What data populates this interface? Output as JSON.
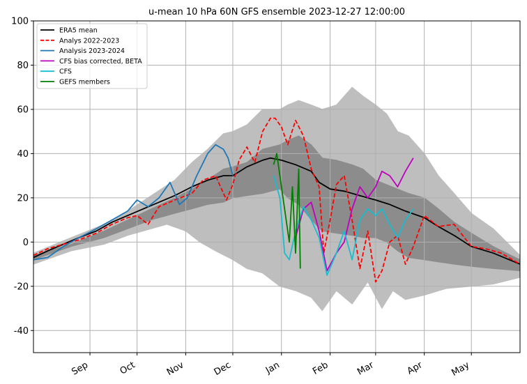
{
  "chart_data": {
    "type": "line",
    "title": "u-mean 10 hPa 60N GFS ensemble 2023-12-27 12:00:00",
    "xlabel": "",
    "ylabel": "",
    "ylim": [
      -50,
      100
    ],
    "xlim": [
      "2023-07-27",
      "2024-06-01"
    ],
    "yticks": [
      -40,
      -20,
      0,
      20,
      40,
      60,
      80,
      100
    ],
    "xticks": [
      {
        "label": "Sep",
        "date": "2023-09-01"
      },
      {
        "label": "Oct",
        "date": "2023-10-01"
      },
      {
        "label": "Nov",
        "date": "2023-11-01"
      },
      {
        "label": "Dec",
        "date": "2023-12-01"
      },
      {
        "label": "Jan",
        "date": "2024-01-01"
      },
      {
        "label": "Feb",
        "date": "2024-02-01"
      },
      {
        "label": "Mar",
        "date": "2024-03-01"
      },
      {
        "label": "Apr",
        "date": "2024-04-01"
      },
      {
        "label": "May",
        "date": "2024-05-01"
      }
    ],
    "grid": true,
    "legend_position": "top-left",
    "bands": [
      {
        "color": "#bebebe",
        "upper": [
          [
            "2023-07-27",
            -5
          ],
          [
            "2023-08-20",
            2
          ],
          [
            "2023-09-10",
            8
          ],
          [
            "2023-09-25",
            14
          ],
          [
            "2023-10-10",
            21
          ],
          [
            "2023-10-25",
            28
          ],
          [
            "2023-11-05",
            36
          ],
          [
            "2023-11-15",
            42
          ],
          [
            "2023-11-25",
            49
          ],
          [
            "2023-12-01",
            50
          ],
          [
            "2023-12-10",
            53
          ],
          [
            "2023-12-20",
            60
          ],
          [
            "2023-12-31",
            60
          ],
          [
            "2024-01-05",
            62
          ],
          [
            "2024-01-12",
            64
          ],
          [
            "2024-01-20",
            62
          ],
          [
            "2024-01-27",
            60
          ],
          [
            "2024-02-05",
            62
          ],
          [
            "2024-02-15",
            70
          ],
          [
            "2024-02-22",
            66
          ],
          [
            "2024-03-01",
            62
          ],
          [
            "2024-03-08",
            58
          ],
          [
            "2024-03-15",
            50
          ],
          [
            "2024-03-22",
            48
          ],
          [
            "2024-04-01",
            40
          ],
          [
            "2024-04-10",
            30
          ],
          [
            "2024-04-20",
            22
          ],
          [
            "2024-05-01",
            13
          ],
          [
            "2024-05-15",
            6
          ],
          [
            "2024-06-01",
            -6
          ]
        ],
        "lower": [
          [
            "2023-07-27",
            -10
          ],
          [
            "2023-08-20",
            -4
          ],
          [
            "2023-09-10",
            -1
          ],
          [
            "2023-09-25",
            3
          ],
          [
            "2023-10-10",
            6
          ],
          [
            "2023-10-20",
            8
          ],
          [
            "2023-11-01",
            5
          ],
          [
            "2023-11-10",
            0
          ],
          [
            "2023-11-20",
            -4
          ],
          [
            "2023-12-01",
            -8
          ],
          [
            "2023-12-10",
            -12
          ],
          [
            "2023-12-20",
            -14
          ],
          [
            "2023-12-31",
            -20
          ],
          [
            "2024-01-10",
            -22
          ],
          [
            "2024-01-20",
            -25
          ],
          [
            "2024-01-27",
            -31
          ],
          [
            "2024-02-05",
            -22
          ],
          [
            "2024-02-15",
            -28
          ],
          [
            "2024-02-25",
            -18
          ],
          [
            "2024-03-05",
            -30
          ],
          [
            "2024-03-12",
            -22
          ],
          [
            "2024-03-20",
            -26
          ],
          [
            "2024-04-01",
            -24
          ],
          [
            "2024-04-15",
            -21
          ],
          [
            "2024-05-01",
            -20
          ],
          [
            "2024-05-15",
            -19
          ],
          [
            "2024-06-01",
            -16
          ]
        ]
      },
      {
        "color": "#8c8c8c",
        "upper": [
          [
            "2023-07-27",
            -6
          ],
          [
            "2023-08-20",
            -1
          ],
          [
            "2023-09-10",
            5
          ],
          [
            "2023-09-25",
            10
          ],
          [
            "2023-10-10",
            15
          ],
          [
            "2023-10-25",
            20
          ],
          [
            "2023-11-05",
            24
          ],
          [
            "2023-11-15",
            28
          ],
          [
            "2023-11-25",
            33
          ],
          [
            "2023-12-01",
            34
          ],
          [
            "2023-12-10",
            36
          ],
          [
            "2023-12-20",
            42
          ],
          [
            "2023-12-31",
            44
          ],
          [
            "2024-01-05",
            46
          ],
          [
            "2024-01-12",
            48
          ],
          [
            "2024-01-20",
            44
          ],
          [
            "2024-01-27",
            38
          ],
          [
            "2024-02-05",
            37
          ],
          [
            "2024-02-15",
            35
          ],
          [
            "2024-02-22",
            33
          ],
          [
            "2024-03-01",
            28
          ],
          [
            "2024-03-08",
            26
          ],
          [
            "2024-03-15",
            24
          ],
          [
            "2024-03-22",
            22
          ],
          [
            "2024-04-01",
            20
          ],
          [
            "2024-04-10",
            15
          ],
          [
            "2024-04-20",
            9
          ],
          [
            "2024-05-01",
            4
          ],
          [
            "2024-05-15",
            -2
          ],
          [
            "2024-06-01",
            -8
          ]
        ],
        "lower": [
          [
            "2023-07-27",
            -8
          ],
          [
            "2023-08-20",
            -2
          ],
          [
            "2023-09-10",
            2
          ],
          [
            "2023-09-25",
            6
          ],
          [
            "2023-10-10",
            10
          ],
          [
            "2023-10-25",
            13
          ],
          [
            "2023-11-05",
            15
          ],
          [
            "2023-11-15",
            17
          ],
          [
            "2023-11-25",
            18
          ],
          [
            "2023-12-01",
            20
          ],
          [
            "2023-12-10",
            21
          ],
          [
            "2023-12-20",
            22
          ],
          [
            "2023-12-31",
            24
          ],
          [
            "2024-01-05",
            20
          ],
          [
            "2024-01-12",
            17
          ],
          [
            "2024-01-20",
            10
          ],
          [
            "2024-01-27",
            5
          ],
          [
            "2024-02-05",
            4
          ],
          [
            "2024-02-15",
            3
          ],
          [
            "2024-02-22",
            2
          ],
          [
            "2024-03-01",
            2
          ],
          [
            "2024-03-08",
            0
          ],
          [
            "2024-03-15",
            -4
          ],
          [
            "2024-03-22",
            -7
          ],
          [
            "2024-04-01",
            -8
          ],
          [
            "2024-04-10",
            -9
          ],
          [
            "2024-04-20",
            -10
          ],
          [
            "2024-05-01",
            -11
          ],
          [
            "2024-05-15",
            -12
          ],
          [
            "2024-06-01",
            -13
          ]
        ]
      }
    ],
    "series": [
      {
        "name": "ERA5 mean",
        "color": "#000000",
        "dash": "solid",
        "points": [
          [
            "2023-07-27",
            -7
          ],
          [
            "2023-08-05",
            -4
          ],
          [
            "2023-08-15",
            -1
          ],
          [
            "2023-08-25",
            2
          ],
          [
            "2023-09-05",
            5
          ],
          [
            "2023-09-15",
            9
          ],
          [
            "2023-09-25",
            12
          ],
          [
            "2023-10-05",
            15
          ],
          [
            "2023-10-15",
            18
          ],
          [
            "2023-10-25",
            21
          ],
          [
            "2023-11-05",
            25
          ],
          [
            "2023-11-15",
            28
          ],
          [
            "2023-11-25",
            30
          ],
          [
            "2023-12-01",
            30
          ],
          [
            "2023-12-10",
            34
          ],
          [
            "2023-12-20",
            37
          ],
          [
            "2023-12-25",
            38
          ],
          [
            "2024-01-01",
            37
          ],
          [
            "2024-01-10",
            35
          ],
          [
            "2024-01-20",
            32
          ],
          [
            "2024-01-25",
            27
          ],
          [
            "2024-02-01",
            24
          ],
          [
            "2024-02-10",
            23
          ],
          [
            "2024-02-20",
            21
          ],
          [
            "2024-03-01",
            19
          ],
          [
            "2024-03-10",
            17
          ],
          [
            "2024-03-20",
            14
          ],
          [
            "2024-04-01",
            11
          ],
          [
            "2024-04-10",
            7
          ],
          [
            "2024-04-20",
            3
          ],
          [
            "2024-05-01",
            -2
          ],
          [
            "2024-05-15",
            -5
          ],
          [
            "2024-06-01",
            -10
          ]
        ]
      },
      {
        "name": "Analys 2022-2023",
        "color": "#ff0000",
        "dash": "dashed",
        "points": [
          [
            "2023-07-27",
            -6
          ],
          [
            "2023-08-05",
            -3
          ],
          [
            "2023-08-15",
            -1
          ],
          [
            "2023-08-25",
            1
          ],
          [
            "2023-09-05",
            4
          ],
          [
            "2023-09-15",
            8
          ],
          [
            "2023-09-25",
            11
          ],
          [
            "2023-10-01",
            12
          ],
          [
            "2023-10-08",
            8
          ],
          [
            "2023-10-15",
            16
          ],
          [
            "2023-10-25",
            19
          ],
          [
            "2023-11-05",
            22
          ],
          [
            "2023-11-12",
            28
          ],
          [
            "2023-11-20",
            30
          ],
          [
            "2023-11-27",
            19
          ],
          [
            "2023-12-01",
            26
          ],
          [
            "2023-12-05",
            37
          ],
          [
            "2023-12-10",
            43
          ],
          [
            "2023-12-15",
            36
          ],
          [
            "2023-12-20",
            50
          ],
          [
            "2023-12-25",
            56
          ],
          [
            "2023-12-28",
            56
          ],
          [
            "2024-01-01",
            52
          ],
          [
            "2024-01-05",
            44
          ],
          [
            "2024-01-10",
            55
          ],
          [
            "2024-01-15",
            48
          ],
          [
            "2024-01-20",
            33
          ],
          [
            "2024-01-25",
            25
          ],
          [
            "2024-01-28",
            -5
          ],
          [
            "2024-02-01",
            10
          ],
          [
            "2024-02-05",
            26
          ],
          [
            "2024-02-10",
            30
          ],
          [
            "2024-02-15",
            10
          ],
          [
            "2024-02-20",
            -12
          ],
          [
            "2024-02-25",
            5
          ],
          [
            "2024-03-01",
            -18
          ],
          [
            "2024-03-05",
            -13
          ],
          [
            "2024-03-10",
            0
          ],
          [
            "2024-03-15",
            3
          ],
          [
            "2024-03-20",
            -10
          ],
          [
            "2024-03-25",
            -2
          ],
          [
            "2024-04-01",
            12
          ],
          [
            "2024-04-10",
            7
          ],
          [
            "2024-04-20",
            8
          ],
          [
            "2024-05-01",
            -2
          ],
          [
            "2024-05-10",
            -3
          ],
          [
            "2024-05-20",
            -5
          ],
          [
            "2024-06-01",
            -10
          ]
        ]
      },
      {
        "name": "Analysis 2023-2024",
        "color": "#1f77b4",
        "dash": "solid",
        "points": [
          [
            "2023-07-27",
            -8
          ],
          [
            "2023-08-05",
            -7
          ],
          [
            "2023-08-15",
            -2
          ],
          [
            "2023-08-25",
            2
          ],
          [
            "2023-09-05",
            6
          ],
          [
            "2023-09-15",
            10
          ],
          [
            "2023-09-25",
            14
          ],
          [
            "2023-10-01",
            19
          ],
          [
            "2023-10-08",
            16
          ],
          [
            "2023-10-15",
            20
          ],
          [
            "2023-10-22",
            27
          ],
          [
            "2023-10-28",
            17
          ],
          [
            "2023-11-02",
            20
          ],
          [
            "2023-11-08",
            30
          ],
          [
            "2023-11-15",
            40
          ],
          [
            "2023-11-20",
            44
          ],
          [
            "2023-11-25",
            42
          ],
          [
            "2023-11-28",
            38
          ],
          [
            "2023-12-01",
            30
          ]
        ]
      },
      {
        "name": "CFS bias corrected, BETA",
        "color": "#bf00bf",
        "dash": "solid",
        "points": [
          [
            "2024-01-10",
            2
          ],
          [
            "2024-01-15",
            15
          ],
          [
            "2024-01-20",
            18
          ],
          [
            "2024-01-25",
            5
          ],
          [
            "2024-01-30",
            -13
          ],
          [
            "2024-02-05",
            -5
          ],
          [
            "2024-02-10",
            0
          ],
          [
            "2024-02-15",
            15
          ],
          [
            "2024-02-20",
            25
          ],
          [
            "2024-02-25",
            20
          ],
          [
            "2024-03-01",
            25
          ],
          [
            "2024-03-05",
            32
          ],
          [
            "2024-03-10",
            30
          ],
          [
            "2024-03-15",
            25
          ],
          [
            "2024-03-20",
            32
          ],
          [
            "2024-03-25",
            38
          ]
        ]
      },
      {
        "name": "CFS",
        "color": "#17becf",
        "dash": "solid",
        "points": [
          [
            "2023-12-27",
            30
          ],
          [
            "2023-12-31",
            20
          ],
          [
            "2024-01-03",
            -5
          ],
          [
            "2024-01-06",
            -8
          ],
          [
            "2024-01-10",
            5
          ],
          [
            "2024-01-15",
            16
          ],
          [
            "2024-01-20",
            10
          ],
          [
            "2024-01-25",
            2
          ],
          [
            "2024-01-30",
            -15
          ],
          [
            "2024-02-05",
            -5
          ],
          [
            "2024-02-10",
            5
          ],
          [
            "2024-02-15",
            -8
          ],
          [
            "2024-02-20",
            10
          ],
          [
            "2024-02-25",
            15
          ],
          [
            "2024-03-01",
            12
          ],
          [
            "2024-03-05",
            15
          ],
          [
            "2024-03-10",
            8
          ],
          [
            "2024-03-15",
            2
          ],
          [
            "2024-03-20",
            10
          ],
          [
            "2024-03-25",
            15
          ]
        ]
      },
      {
        "name": "GEFS members",
        "color": "#008000",
        "dash": "solid",
        "points": [
          [
            "2023-12-27",
            35
          ],
          [
            "2023-12-29",
            40
          ],
          [
            "2023-12-31",
            30
          ],
          [
            "2024-01-02",
            20
          ],
          [
            "2024-01-04",
            10
          ],
          [
            "2024-01-06",
            0
          ],
          [
            "2024-01-08",
            25
          ],
          [
            "2024-01-10",
            -5
          ],
          [
            "2024-01-12",
            33
          ],
          [
            "2024-01-13",
            -12
          ]
        ]
      }
    ]
  }
}
